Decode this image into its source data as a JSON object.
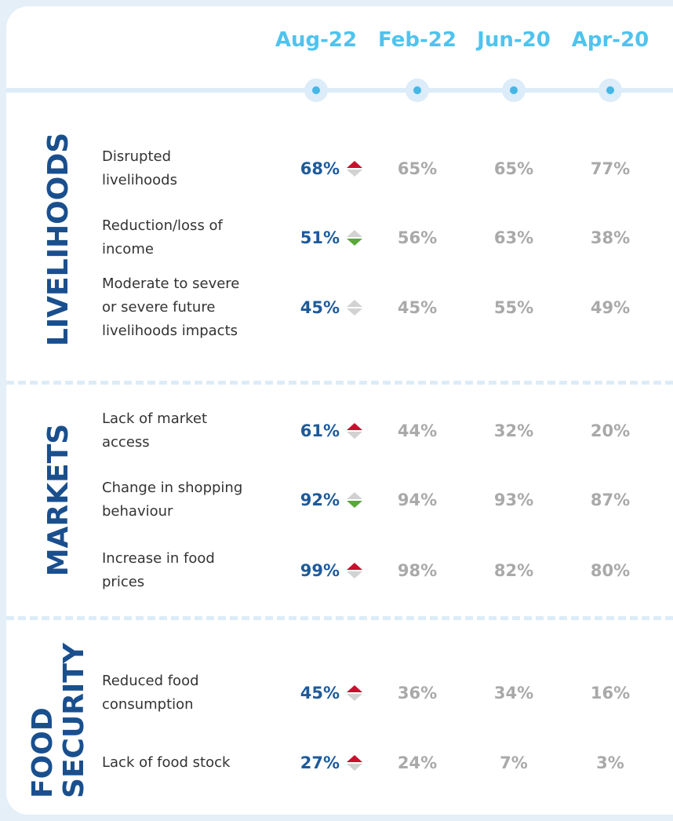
{
  "columns": [
    "Aug-22",
    "Feb-22",
    "Jun-20",
    "Apr-20"
  ],
  "sections": [
    {
      "title": [
        "LIVELIHOODS"
      ],
      "rows": [
        {
          "label": [
            "Disrupted",
            "livelihoods"
          ],
          "values": [
            "68%",
            "65%",
            "65%",
            "77%"
          ],
          "trend": "up"
        },
        {
          "label": [
            "Reduction/loss of",
            "income"
          ],
          "values": [
            "51%",
            "56%",
            "63%",
            "38%"
          ],
          "trend": "down"
        },
        {
          "label": [
            "Moderate to severe",
            "or severe future",
            "livelihoods impacts"
          ],
          "values": [
            "45%",
            "45%",
            "55%",
            "49%"
          ],
          "trend": "none"
        }
      ]
    },
    {
      "title": [
        "MARKETS"
      ],
      "rows": [
        {
          "label": [
            "Lack of market",
            "access"
          ],
          "values": [
            "61%",
            "44%",
            "32%",
            "20%"
          ],
          "trend": "up"
        },
        {
          "label": [
            "Change in shopping",
            "behaviour"
          ],
          "values": [
            "92%",
            "94%",
            "93%",
            "87%"
          ],
          "trend": "down"
        },
        {
          "label": [
            "Increase in food",
            "prices"
          ],
          "values": [
            "99%",
            "98%",
            "82%",
            "80%"
          ],
          "trend": "up"
        }
      ]
    },
    {
      "title": [
        "FOOD",
        "SECURITY"
      ],
      "rows": [
        {
          "label": [
            "Reduced food",
            "consumption"
          ],
          "values": [
            "45%",
            "36%",
            "34%",
            "16%"
          ],
          "trend": "up"
        },
        {
          "label": [
            "Lack of food stock"
          ],
          "values": [
            "27%",
            "24%",
            "7%",
            "3%"
          ],
          "trend": "up"
        }
      ]
    }
  ]
}
